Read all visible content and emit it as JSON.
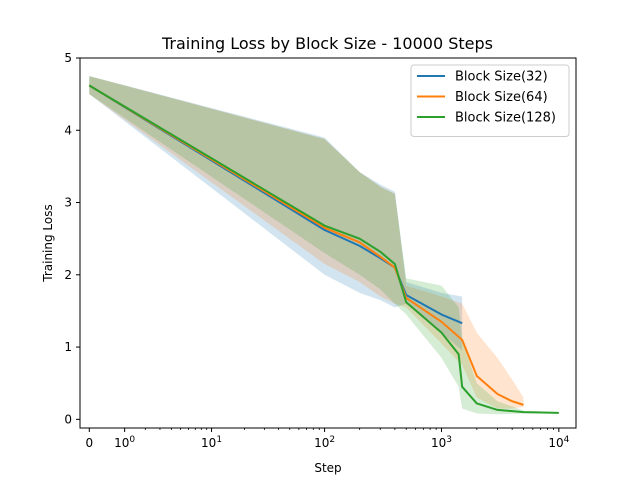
{
  "chart_data": {
    "type": "line",
    "title": "Training Loss by Block Size - 10000 Steps",
    "xlabel": "Step",
    "ylabel": "Training Loss",
    "xscale": "symlog",
    "xlim": [
      -0.2,
      14000
    ],
    "ylim": [
      -0.12,
      5.0
    ],
    "grid": false,
    "legend_position": "top-right",
    "x_ticks": [
      {
        "value": 0,
        "label": "0"
      },
      {
        "value": 1,
        "label": "10",
        "sup": "0"
      },
      {
        "value": 10,
        "label": "10",
        "sup": "1"
      },
      {
        "value": 100,
        "label": "10",
        "sup": "2"
      },
      {
        "value": 1000,
        "label": "10",
        "sup": "3"
      },
      {
        "value": 10000,
        "label": "10",
        "sup": "4"
      }
    ],
    "y_ticks": [
      0,
      1,
      2,
      3,
      4,
      5
    ],
    "series": [
      {
        "name": "Block Size(32)",
        "color": "#1f77b4",
        "x": [
          0,
          100,
          200,
          300,
          400,
          500,
          1000,
          1500
        ],
        "y": [
          4.62,
          2.62,
          2.4,
          2.23,
          2.1,
          1.72,
          1.45,
          1.33
        ],
        "lower": [
          4.5,
          2.0,
          1.75,
          1.65,
          1.55,
          1.6,
          1.2,
          0.95
        ],
        "upper": [
          4.75,
          3.9,
          3.42,
          3.25,
          3.15,
          1.9,
          1.75,
          1.7
        ]
      },
      {
        "name": "Block Size(64)",
        "color": "#ff7f0e",
        "x": [
          0,
          100,
          200,
          300,
          400,
          500,
          1000,
          1500,
          2000,
          3000,
          4000,
          5000
        ],
        "y": [
          4.62,
          2.65,
          2.45,
          2.25,
          2.1,
          1.68,
          1.35,
          1.1,
          0.6,
          0.35,
          0.25,
          0.2
        ],
        "lower": [
          4.5,
          2.15,
          1.9,
          1.7,
          1.6,
          1.55,
          1.05,
          0.75,
          0.3,
          0.15,
          0.15,
          0.17
        ],
        "upper": [
          4.75,
          3.88,
          3.42,
          3.22,
          3.12,
          1.85,
          1.7,
          1.6,
          1.2,
          0.85,
          0.55,
          0.3
        ]
      },
      {
        "name": "Block Size(128)",
        "color": "#2ca02c",
        "x": [
          0,
          100,
          200,
          300,
          400,
          500,
          1000,
          1400,
          1500,
          2000,
          3000,
          5000,
          10000
        ],
        "y": [
          4.62,
          2.68,
          2.5,
          2.32,
          2.15,
          1.62,
          1.2,
          0.9,
          0.45,
          0.22,
          0.13,
          0.1,
          0.09
        ],
        "lower": [
          4.5,
          2.3,
          2.0,
          1.8,
          1.6,
          1.45,
          0.85,
          0.45,
          0.15,
          0.08,
          0.07,
          0.08,
          0.08
        ],
        "upper": [
          4.75,
          3.88,
          3.42,
          3.22,
          3.12,
          1.95,
          1.85,
          1.55,
          1.1,
          0.5,
          0.25,
          0.12,
          0.1
        ]
      }
    ]
  }
}
